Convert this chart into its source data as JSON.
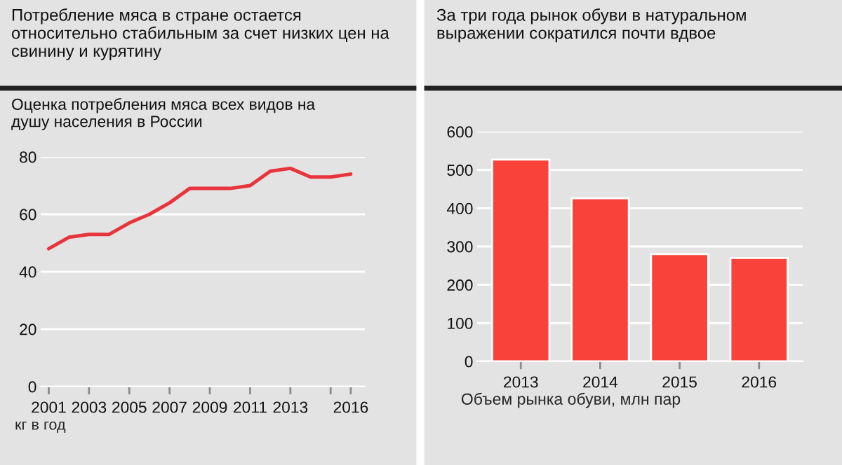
{
  "chart_data": [
    {
      "type": "line",
      "title": "Потребление мяса в стране остается относительно стабильным за счет низких цен на свинину и курятину",
      "subtitle": "Оценка потребления мяса всех видов на душу населения в России",
      "annotations": [
        "кг в год"
      ],
      "x": [
        2001,
        2002,
        2003,
        2004,
        2005,
        2006,
        2007,
        2008,
        2009,
        2010,
        2011,
        2012,
        2013,
        2014,
        2015,
        2016
      ],
      "series": [
        {
          "color": "#e8343c",
          "values": [
            48,
            52,
            53,
            53,
            57,
            60,
            64,
            69,
            69,
            69,
            70,
            75,
            76,
            73,
            73,
            74
          ]
        }
      ],
      "xlim": [
        2000.6,
        2016.7
      ],
      "ylim": [
        0,
        80
      ],
      "xticks": [
        2001,
        2003,
        2005,
        2007,
        2009,
        2011,
        2013,
        {
          "value": 2015,
          "label": null
        },
        2016
      ],
      "yticks": [
        0,
        20,
        40,
        60,
        80
      ],
      "grid": "y"
    },
    {
      "type": "bar",
      "title": "За три года рынок обуви в натуральном выражении сократился почти вдвое",
      "xlabel": "Объем рынка обуви, млн пар",
      "categories": [
        "2013",
        "2014",
        "2015",
        "2016"
      ],
      "series": [
        {
          "color": "#f9423a",
          "values": [
            527,
            426,
            280,
            270
          ]
        }
      ],
      "ylim": [
        0,
        600
      ],
      "yticks": [
        0,
        100,
        200,
        300,
        400,
        500,
        600
      ],
      "grid": "y"
    }
  ]
}
